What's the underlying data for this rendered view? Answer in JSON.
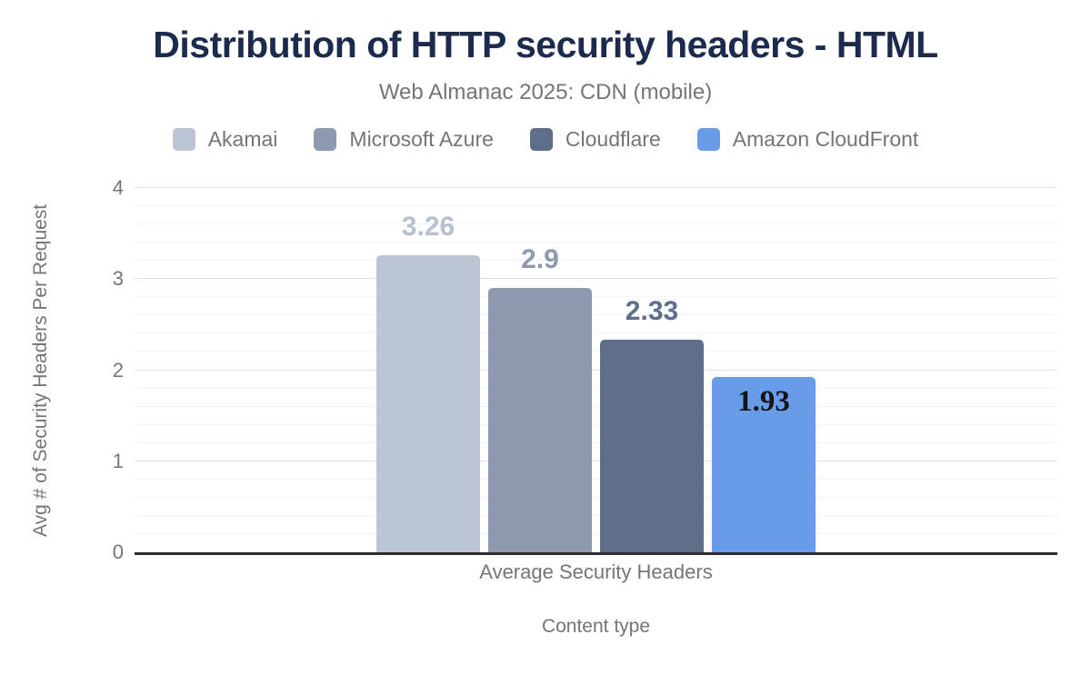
{
  "title": "Distribution of HTTP security headers - HTML",
  "subtitle": "Web Almanac 2025: CDN (mobile)",
  "legend": {
    "items": [
      {
        "label": "Akamai",
        "color": "#bcc5d3"
      },
      {
        "label": "Microsoft Azure",
        "color": "#8d99ae"
      },
      {
        "label": "Cloudflare",
        "color": "#5d6d8a"
      },
      {
        "label": "Amazon CloudFront",
        "color": "#699ce8"
      }
    ]
  },
  "axes": {
    "y_title": "Avg # of Security Headers Per Request",
    "x_title": "Content type",
    "category": "Average Security Headers",
    "y_ticks": [
      0,
      1,
      2,
      3,
      4
    ]
  },
  "chart_data": {
    "type": "bar",
    "categories": [
      "Average Security Headers"
    ],
    "series": [
      {
        "name": "Akamai",
        "values": [
          3.26
        ],
        "color": "#bcc5d3",
        "label": "3.26",
        "label_color": "#b6c0cf",
        "label_position": "above"
      },
      {
        "name": "Microsoft Azure",
        "values": [
          2.9
        ],
        "color": "#8d99ae",
        "label": "2.9",
        "label_color": "#8d99ae",
        "label_position": "above"
      },
      {
        "name": "Cloudflare",
        "values": [
          2.33
        ],
        "color": "#5d6d8a",
        "label": "2.33",
        "label_color": "#5d6d8a",
        "label_position": "above"
      },
      {
        "name": "Amazon CloudFront",
        "values": [
          1.93
        ],
        "color": "#699ce8",
        "label": "1.93",
        "label_color": "#141414",
        "label_position": "inside-top"
      }
    ],
    "title": "Distribution of HTTP security headers - HTML",
    "subtitle": "Web Almanac 2025: CDN (mobile)",
    "xlabel": "Content type",
    "ylabel": "Avg # of Security Headers Per Request",
    "ylim": [
      0,
      4
    ],
    "yticks": [
      0,
      1,
      2,
      3,
      4
    ],
    "minor_grid_step": 0.2,
    "grid": true,
    "legend_position": "top"
  },
  "colors": {
    "background": "#ffffff",
    "title": "#1c2b4d",
    "axis_text": "#757575",
    "axis_line": "#2e2e2e",
    "grid_major": "#e2e2e2",
    "grid_minor": "#f3f3f3"
  }
}
